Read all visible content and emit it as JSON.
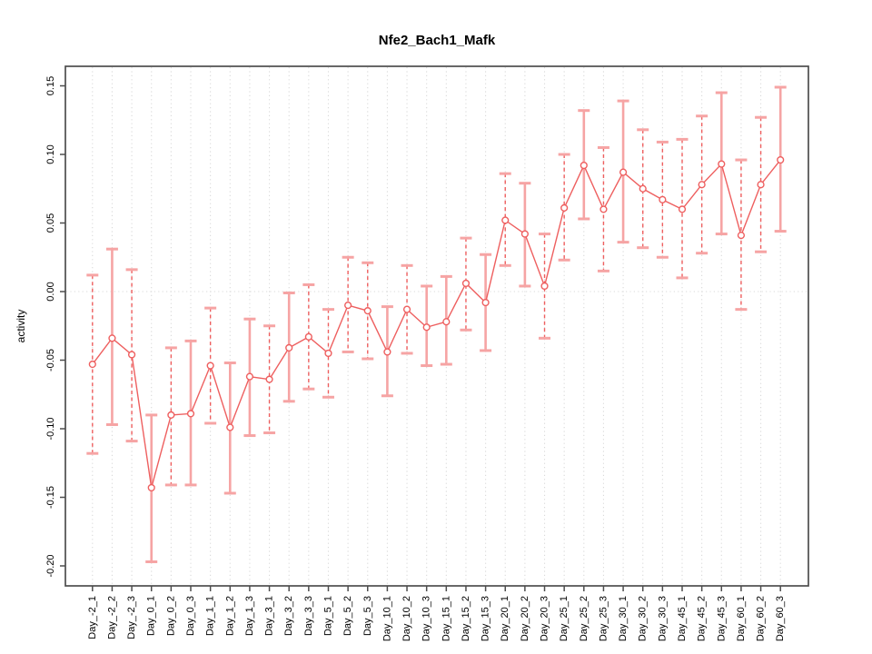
{
  "chart_data": {
    "type": "line",
    "title": "Nfe2_Bach1_Mafk",
    "xlabel": "",
    "ylabel": "activity",
    "ylim": [
      -0.213,
      0.165
    ],
    "ytick_labels": [
      "0.15",
      "0.10",
      "0.05",
      "0.00",
      "-0.05",
      "-0.10",
      "-0.15",
      "-0.20"
    ],
    "grid": "vertical dotted gridline at every category; dotted horizontal reference line at 0.00; no legend",
    "legend_position": "none",
    "point_marker": "open-circle",
    "categories": [
      "Day_-2_1",
      "Day_-2_2",
      "Day_-2_3",
      "Day_0_1",
      "Day_0_2",
      "Day_0_3",
      "Day_1_1",
      "Day_1_2",
      "Day_1_3",
      "Day_3_1",
      "Day_3_2",
      "Day_3_3",
      "Day_5_1",
      "Day_5_2",
      "Day_5_3",
      "Day_10_1",
      "Day_10_2",
      "Day_10_3",
      "Day_15_1",
      "Day_15_2",
      "Day_15_3",
      "Day_20_1",
      "Day_20_2",
      "Day_20_3",
      "Day_25_1",
      "Day_25_2",
      "Day_25_3",
      "Day_30_1",
      "Day_30_2",
      "Day_30_3",
      "Day_45_1",
      "Day_45_2",
      "Day_45_3",
      "Day_60_1",
      "Day_60_2",
      "Day_60_3"
    ],
    "series": [
      {
        "name": "activity",
        "values": [
          -0.053,
          -0.034,
          -0.046,
          -0.143,
          -0.09,
          -0.089,
          -0.054,
          -0.099,
          -0.062,
          -0.064,
          -0.041,
          -0.033,
          -0.045,
          -0.01,
          -0.014,
          -0.044,
          -0.013,
          -0.026,
          -0.022,
          0.006,
          -0.008,
          0.052,
          0.042,
          0.004,
          0.061,
          0.092,
          0.06,
          0.087,
          0.075,
          0.067,
          0.06,
          0.078,
          0.093,
          0.041,
          0.078,
          0.096
        ],
        "ci_low": [
          -0.118,
          -0.097,
          -0.109,
          -0.197,
          -0.141,
          -0.141,
          -0.096,
          -0.147,
          -0.105,
          -0.103,
          -0.08,
          -0.071,
          -0.077,
          -0.044,
          -0.049,
          -0.076,
          -0.045,
          -0.054,
          -0.053,
          -0.028,
          -0.043,
          0.019,
          0.004,
          -0.034,
          0.023,
          0.053,
          0.015,
          0.036,
          0.032,
          0.025,
          0.01,
          0.028,
          0.042,
          -0.013,
          0.029,
          0.044
        ],
        "ci_high": [
          0.012,
          0.031,
          0.016,
          -0.09,
          -0.041,
          -0.036,
          -0.012,
          -0.052,
          -0.02,
          -0.025,
          -0.001,
          0.005,
          -0.013,
          0.025,
          0.021,
          -0.011,
          0.019,
          0.004,
          0.011,
          0.039,
          0.027,
          0.086,
          0.079,
          0.042,
          0.1,
          0.132,
          0.105,
          0.139,
          0.118,
          0.109,
          0.111,
          0.128,
          0.145,
          0.096,
          0.127,
          0.149
        ],
        "bar_styles": [
          "dashed",
          "solid",
          "dashed",
          "solid",
          "dashed",
          "solid",
          "dashed",
          "solid",
          "solid",
          "dashed",
          "solid",
          "dashed",
          "dashed",
          "dashed",
          "dashed",
          "solid",
          "dashed",
          "solid",
          "solid",
          "dashed",
          "solid",
          "dashed",
          "solid",
          "dashed",
          "dashed",
          "solid",
          "dashed",
          "solid",
          "dashed",
          "dashed",
          "dashed",
          "dashed",
          "solid",
          "dashed",
          "dashed",
          "solid"
        ]
      }
    ],
    "colors": {
      "line": "#ee5f5f",
      "solid_bar": "#f6a4a4",
      "cap": "#f6a4a4",
      "point_fill": "#ffffff",
      "grid": "#d9d9d9",
      "box": "#4d4d4d",
      "text": "#000000",
      "background": "#ffffff"
    }
  }
}
